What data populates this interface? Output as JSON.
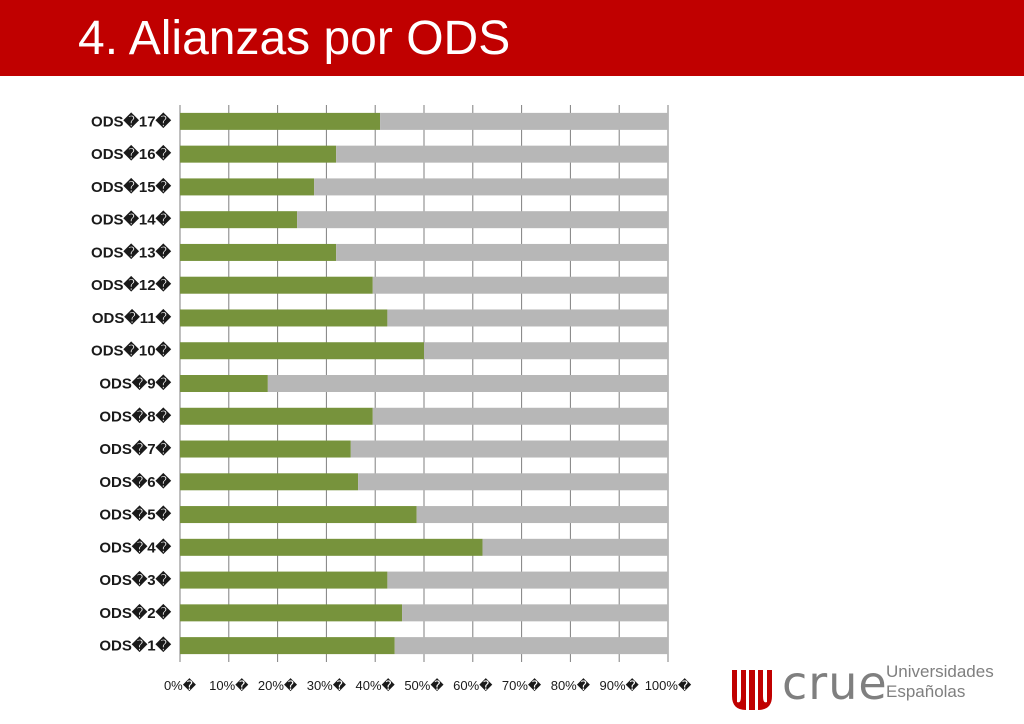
{
  "slide": {
    "title": "4. Alianzas por ODS"
  },
  "logo": {
    "word": "crue",
    "line1": "Universidades",
    "line2": "Españolas",
    "colors": {
      "mark": "#c00000",
      "text": "#7f7f7f"
    }
  },
  "colors": {
    "title_bar": "#c00000",
    "series_primary": "#77933c",
    "series_remainder": "#b7b7b7",
    "grid": "#7f7f7f"
  },
  "chart_data": {
    "type": "bar",
    "orientation": "horizontal",
    "stacked": true,
    "percent_stacked": true,
    "categories": [
      "ODS 1",
      "ODS 2",
      "ODS 3",
      "ODS 4",
      "ODS 5",
      "ODS 6",
      "ODS 7",
      "ODS 8",
      "ODS 9",
      "ODS 10",
      "ODS 11",
      "ODS 12",
      "ODS 13",
      "ODS 14",
      "ODS 15",
      "ODS 16",
      "ODS 17"
    ],
    "category_labels": [
      "ODS�1�",
      "ODS�2�",
      "ODS�3�",
      "ODS�4�",
      "ODS�5�",
      "ODS�6�",
      "ODS�7�",
      "ODS�8�",
      "ODS�9�",
      "ODS�10�",
      "ODS�11�",
      "ODS�12�",
      "ODS�13�",
      "ODS�14�",
      "ODS�15�",
      "ODS�16�",
      "ODS�17�"
    ],
    "series": [
      {
        "values": [
          44,
          45.5,
          42.5,
          62,
          48.5,
          36.5,
          35,
          39.5,
          18,
          50,
          42.5,
          39.5,
          32,
          24,
          27.5,
          32,
          41
        ],
        "color": "#77933c"
      },
      {
        "values": [
          56,
          54.5,
          57.5,
          38,
          51.5,
          63.5,
          65,
          60.5,
          82,
          50,
          57.5,
          60.5,
          68,
          76,
          72.5,
          68,
          59
        ],
        "color": "#b7b7b7"
      }
    ],
    "xlim": [
      0,
      100
    ],
    "x_ticks": [
      0,
      10,
      20,
      30,
      40,
      50,
      60,
      70,
      80,
      90,
      100
    ],
    "x_tick_labels": [
      "0%�",
      "10%�",
      "20%�",
      "30%�",
      "40%�",
      "50%�",
      "60%�",
      "70%�",
      "80%�",
      "90%�",
      "100%�"
    ],
    "grid": true,
    "legend": "none",
    "xlabel": "",
    "ylabel": ""
  }
}
